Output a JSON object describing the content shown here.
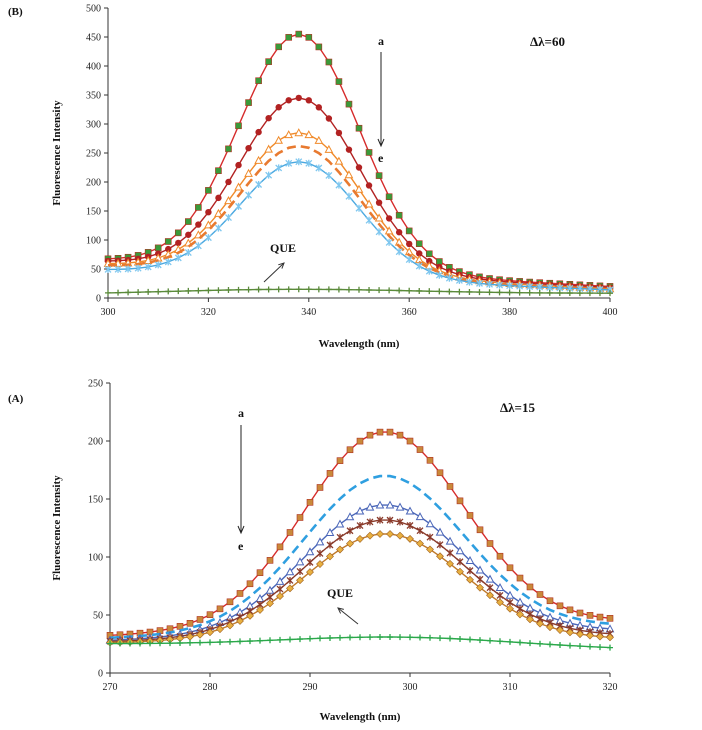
{
  "chart_data": [
    {
      "panel": "B",
      "type": "line",
      "panel_label": "(B)",
      "xlabel": "Wavelength (nm)",
      "ylabel": "Fluorescence Intensity",
      "xlim": [
        300,
        400
      ],
      "ylim": [
        0,
        500
      ],
      "xticks": [
        300,
        320,
        340,
        360,
        380,
        400
      ],
      "yticks": [
        0,
        50,
        100,
        150,
        200,
        250,
        300,
        350,
        400,
        450,
        500
      ],
      "x_start": 300,
      "x_end": 400,
      "x_step": 2,
      "peak_x": 338,
      "annotations": {
        "top": "a",
        "bottom": "e",
        "que": "QUE",
        "delta": "Δλ=60"
      },
      "series": [
        {
          "key": "a",
          "color": "#d62b2b",
          "marker_color": "#3a9a3a",
          "marker": "square",
          "base0": 65,
          "peak": 455,
          "width": 12,
          "tail": 20
        },
        {
          "key": "b",
          "color": "#b22222",
          "marker_color": "#b22222",
          "marker": "circle",
          "base0": 62,
          "peak": 345,
          "width": 12,
          "tail": 18
        },
        {
          "key": "c",
          "color": "#f08a2a",
          "marker_color": "#f08a2a",
          "marker": "triangle",
          "base0": 58,
          "peak": 285,
          "width": 12,
          "tail": 16
        },
        {
          "key": "d",
          "color": "#e87a30",
          "marker_color": "#e87a30",
          "marker": "dash",
          "base0": 55,
          "peak": 262,
          "width": 12,
          "tail": 15
        },
        {
          "key": "e",
          "color": "#4aa8e0",
          "marker_color": "#7fc7ef",
          "marker": "star",
          "base0": 48,
          "peak": 235,
          "width": 12,
          "tail": 14
        },
        {
          "key": "QUE",
          "color": "#5a8a3a",
          "marker_color": "#5a8a3a",
          "marker": "plus",
          "base0": 6,
          "peak": 15,
          "width": 25,
          "tail": 8,
          "flat": true
        }
      ]
    },
    {
      "panel": "A",
      "type": "line",
      "panel_label": "(A)",
      "xlabel": "Wavelength (nm)",
      "ylabel": "Fluorescence Intensity",
      "xlim": [
        270,
        320
      ],
      "ylim": [
        0,
        250
      ],
      "xticks": [
        270,
        280,
        290,
        300,
        310,
        320
      ],
      "yticks": [
        0,
        50,
        100,
        150,
        200,
        250
      ],
      "x_start": 270,
      "x_end": 320,
      "x_step": 1,
      "peak_x": 297.5,
      "annotations": {
        "top": "a",
        "bottom": "e",
        "que": "QUE",
        "delta": "Δλ=15"
      },
      "series": [
        {
          "key": "a",
          "color": "#d62b2b",
          "marker_color": "#c9893a",
          "marker": "square",
          "base0": 32,
          "peak": 208,
          "width": 8,
          "tail": 44
        },
        {
          "key": "b",
          "color": "#2f9fe0",
          "marker_color": "#2f9fe0",
          "marker": "dash",
          "base0": 30,
          "peak": 170,
          "width": 8,
          "tail": 40
        },
        {
          "key": "c",
          "color": "#4a66b8",
          "marker_color": "#4a66b8",
          "marker": "triangle",
          "base0": 28,
          "peak": 145,
          "width": 8,
          "tail": 36
        },
        {
          "key": "d",
          "color": "#8a3a2a",
          "marker_color": "#8a3a2a",
          "marker": "star",
          "base0": 27,
          "peak": 132,
          "width": 8,
          "tail": 32
        },
        {
          "key": "e",
          "color": "#c07a2a",
          "marker_color": "#e8b040",
          "marker": "diamond",
          "base0": 26,
          "peak": 120,
          "width": 8,
          "tail": 29
        },
        {
          "key": "QUE",
          "color": "#2aa84a",
          "marker_color": "#2aa84a",
          "marker": "plus",
          "base0": 25,
          "peak": 31,
          "width": 12,
          "tail": 20,
          "flat": true
        }
      ]
    }
  ]
}
